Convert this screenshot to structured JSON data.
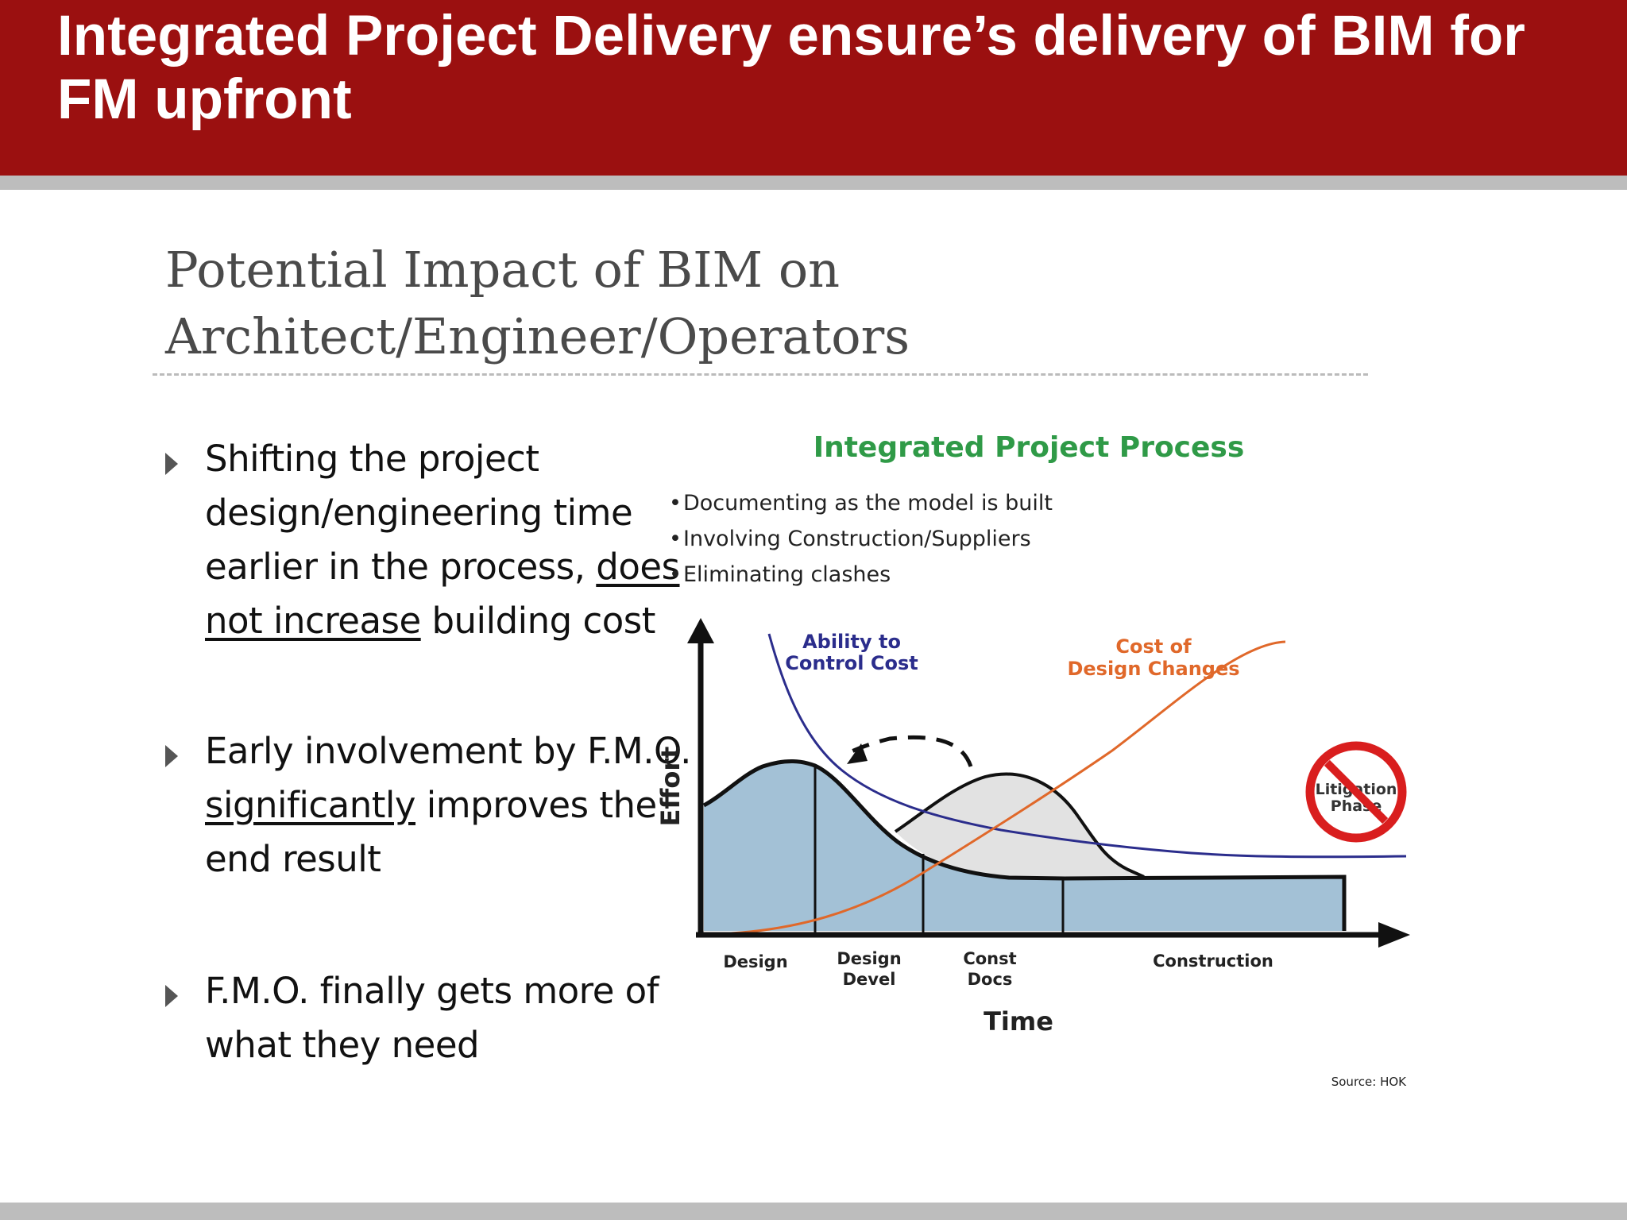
{
  "banner": {
    "title": "Integrated Project Delivery ensure’s delivery of BIM for FM upfront"
  },
  "slide": {
    "heading_line1": "Potential Impact of BIM on",
    "heading_line2": "Architect/Engineer/Operators"
  },
  "bullets": [
    {
      "pre": "Shifting the project design/engineering time earlier in the process, ",
      "underlined": "does not increase",
      "post": " building cost"
    },
    {
      "pre": "Early involvement by F.M.O. ",
      "underlined": "significantly",
      "post": " improves the end result"
    },
    {
      "pre": "F.M.O. finally gets more of what they need",
      "underlined": "",
      "post": ""
    }
  ],
  "diagram": {
    "title": "Integrated Project Process",
    "points": [
      "Documenting as the model is built",
      "Involving Construction/Suppliers",
      "Eliminating clashes"
    ],
    "ability_label_1": "Ability to",
    "ability_label_2": "Control Cost",
    "cost_label_1": "Cost of",
    "cost_label_2": "Design Changes",
    "y_axis_label": "Effort",
    "x_axis_label": "Time",
    "phases": [
      {
        "line1": "Design",
        "line2": ""
      },
      {
        "line1": "Design",
        "line2": "Devel"
      },
      {
        "line1": "Const",
        "line2": "Docs"
      },
      {
        "line1": "Construction",
        "line2": ""
      }
    ],
    "litigation_1": "Litigation",
    "litigation_2": "Phase",
    "source": "Source:  HOK",
    "colors": {
      "ability_curve": "#2b2d8c",
      "cost_curve": "#e0682a",
      "title": "#2f9a47",
      "phase_fill": "#a3c1d6",
      "litigation_sign": "#d91e1e"
    }
  }
}
